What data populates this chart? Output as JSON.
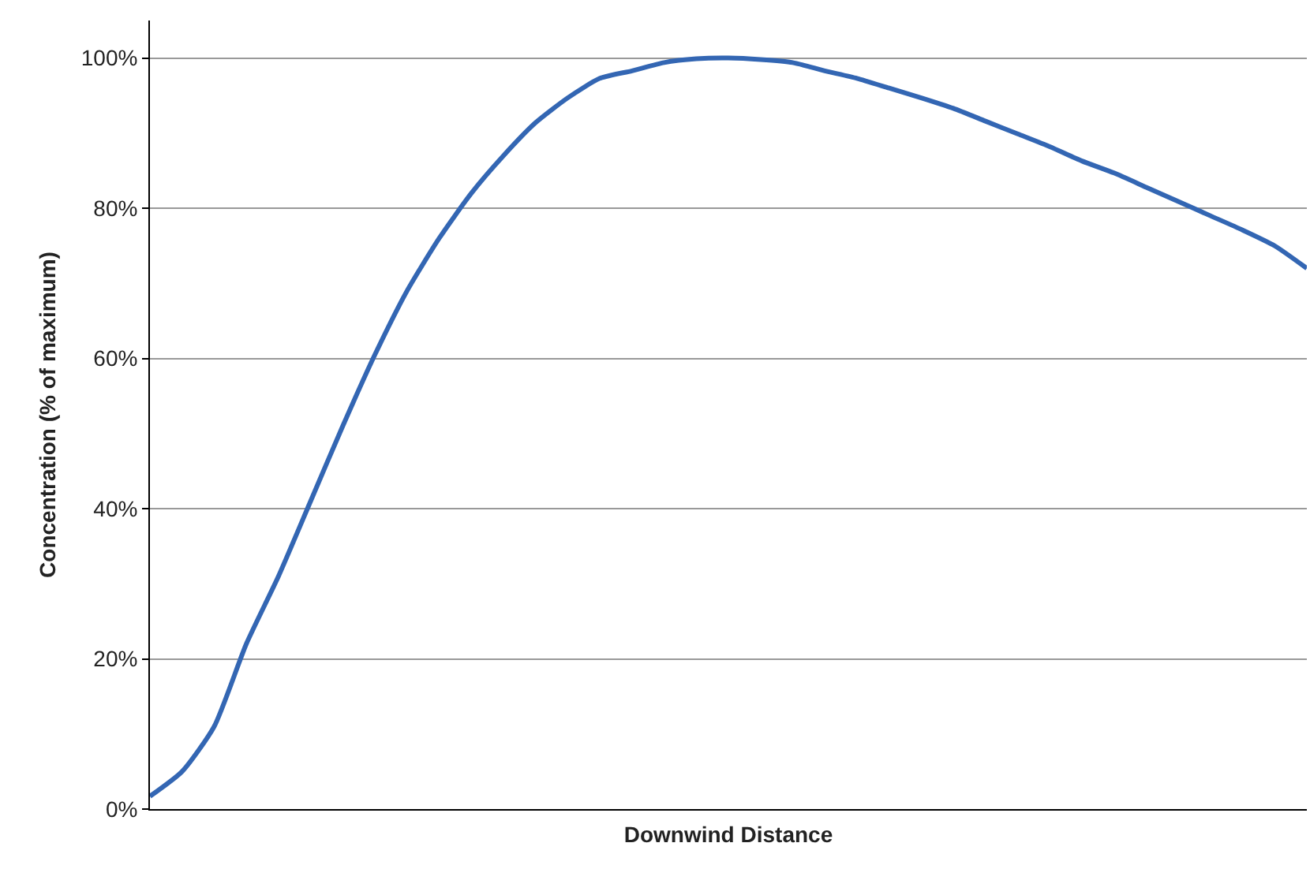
{
  "chart_data": {
    "type": "line",
    "xlabel": "Downwind Distance",
    "ylabel": "Concentration (% of maximum)",
    "categories": [
      null,
      null,
      null,
      null,
      null,
      null,
      null,
      null,
      null,
      null,
      null,
      null,
      null,
      null,
      null,
      null,
      null,
      null,
      null,
      null,
      null,
      null,
      null,
      null,
      null,
      null,
      null,
      null,
      null,
      null,
      null,
      null,
      null,
      null,
      null,
      null,
      null
    ],
    "series": [
      {
        "color": "#3366b3",
        "values": [
          1.7,
          5,
          11,
          22,
          31,
          41,
          51,
          60.5,
          69,
          76,
          82,
          87,
          91.4,
          94.7,
          97.3,
          98.3,
          99.4,
          99.9,
          100,
          99.8,
          99.4,
          98.3,
          97.3,
          96,
          94.7,
          93.3,
          91.6,
          89.9,
          88.2,
          86.3,
          84.7,
          82.8,
          80.9,
          79,
          77.1,
          75,
          72
        ]
      }
    ],
    "ylim": [
      0,
      105
    ],
    "yticks": [
      {
        "value": 0,
        "label": "0%"
      },
      {
        "value": 20,
        "label": "20%"
      },
      {
        "value": 40,
        "label": "40%"
      },
      {
        "value": 60,
        "label": "60%"
      },
      {
        "value": 80,
        "label": "80%"
      },
      {
        "value": 100,
        "label": "100%"
      }
    ],
    "grid": "y",
    "marker": "none",
    "line_style": "solid"
  }
}
